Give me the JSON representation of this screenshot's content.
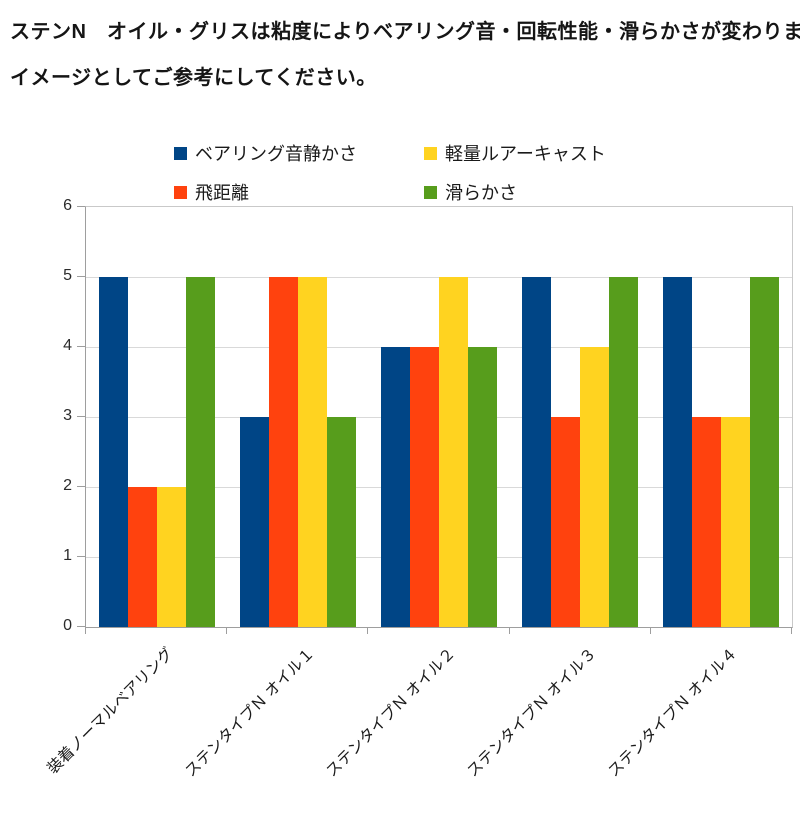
{
  "header": {
    "line1": "ステンN　オイル・グリスは粘度によりベアリング音・回転性能・滑らかさが変わります",
    "line2": "イメージとしてご参考にしてください。"
  },
  "chart_data": {
    "type": "bar",
    "title": "",
    "xlabel": "",
    "ylabel": "",
    "ylim": [
      0,
      6
    ],
    "yticks": [
      0,
      1,
      2,
      3,
      4,
      5,
      6
    ],
    "grid": true,
    "legend_position": "top",
    "categories": [
      "装着ノーマルベアリング",
      "ステンタイプＮ オイル１",
      "ステンタイプＮ オイル２",
      "ステンタイプＮ オイル３",
      "ステンタイプＮ オイル４"
    ],
    "series": [
      {
        "name": "ベアリング音静かさ",
        "color": "#004586",
        "values": [
          5,
          3,
          4,
          5,
          5
        ]
      },
      {
        "name": "飛距離",
        "color": "#ff420e",
        "values": [
          2,
          5,
          4,
          3,
          3
        ]
      },
      {
        "name": "軽量ルアーキャスト",
        "color": "#ffd320",
        "values": [
          2,
          5,
          5,
          4,
          3
        ]
      },
      {
        "name": "滑らかさ",
        "color": "#579d1c",
        "values": [
          5,
          3,
          4,
          5,
          5
        ]
      }
    ]
  }
}
